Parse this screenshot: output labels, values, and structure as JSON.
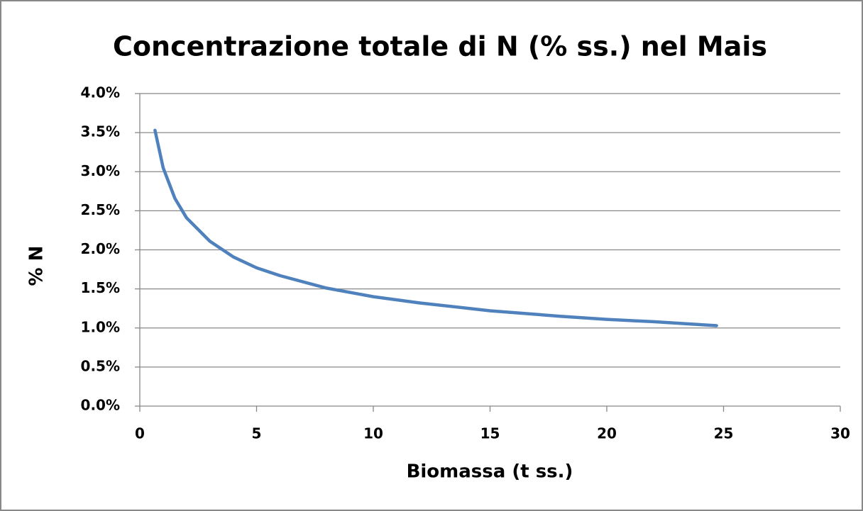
{
  "chart_data": {
    "type": "line",
    "title": "Concentrazione totale di N (% ss.) nel Mais",
    "xlabel": "Biomassa (t ss.)",
    "ylabel": "% N",
    "x": [
      0.65,
      1,
      1.5,
      2,
      3,
      4,
      5,
      6,
      8,
      10,
      12,
      15,
      18,
      20,
      22,
      24.7
    ],
    "series": [
      {
        "name": "Mais",
        "color": "#4f81bd",
        "values": [
          3.53,
          3.05,
          2.66,
          2.41,
          2.11,
          1.91,
          1.77,
          1.67,
          1.51,
          1.4,
          1.32,
          1.22,
          1.15,
          1.11,
          1.08,
          1.03
        ]
      }
    ],
    "xlim": [
      0,
      30
    ],
    "xticks": [
      0,
      5,
      10,
      15,
      20,
      25,
      30
    ],
    "ylim": [
      0,
      4
    ],
    "yticks": [
      {
        "value": 0,
        "label": "0.0%"
      },
      {
        "value": 0.5,
        "label": "0.5%"
      },
      {
        "value": 1,
        "label": "1.0%"
      },
      {
        "value": 1.5,
        "label": "1.5%"
      },
      {
        "value": 2,
        "label": "2.0%"
      },
      {
        "value": 2.5,
        "label": "2.5%"
      },
      {
        "value": 3,
        "label": "3.0%"
      },
      {
        "value": 3.5,
        "label": "3.5%"
      },
      {
        "value": 4,
        "label": "4.0%"
      }
    ],
    "grid": true
  }
}
